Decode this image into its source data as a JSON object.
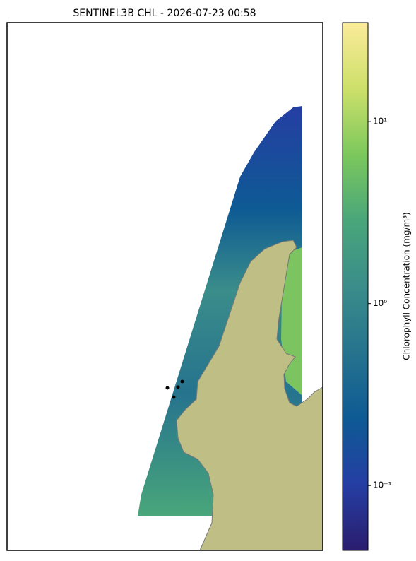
{
  "chart_data": {
    "type": "map",
    "title": "SENTINEL3B CHL - 2026-07-23 00:58",
    "colorbar_label": "Chlorophyll Concentration (mg/m³)",
    "clim": [
      0.044,
      35
    ],
    "log_scale": true,
    "cticks": [
      {
        "value": 0.1,
        "label": "10⁻¹"
      },
      {
        "value": 1,
        "label": "10⁰"
      },
      {
        "value": 10,
        "label": "10¹"
      }
    ],
    "colormap": [
      "#2a1d6e",
      "#253ea3",
      "#0e5a94",
      "#26738e",
      "#3a8d8a",
      "#49a67a",
      "#7cc85c",
      "#cde06a",
      "#fbeb9a"
    ],
    "land_color": "#bfbf85"
  }
}
